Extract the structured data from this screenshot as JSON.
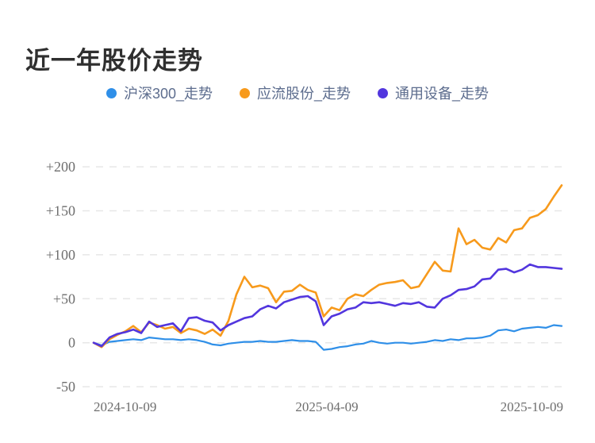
{
  "title": "近一年股价走势",
  "legend": [
    {
      "label": "沪深300_走势",
      "color": "#2f8fe8"
    },
    {
      "label": "应流股份_走势",
      "color": "#f79a1c"
    },
    {
      "label": "通用设备_走势",
      "color": "#5236de"
    }
  ],
  "chart_data": {
    "type": "line",
    "title": "近一年股价走势",
    "x_tick_labels": [
      "2024-10-09",
      "2025-04-09",
      "2025-10-09"
    ],
    "x_range_days": 365,
    "y_ticks": [
      -50,
      0,
      50,
      100,
      150,
      200
    ],
    "y_tick_labels": [
      "-50",
      "0",
      "+50",
      "+100",
      "+150",
      "+200"
    ],
    "ylim": [
      -50,
      200
    ],
    "grid": "horizontal-dashed",
    "grid_color": "#e7e7e7",
    "legend_position": "top-center",
    "unit": "percent-change",
    "series": [
      {
        "name": "沪深300_走势",
        "color": "#2f8fe8",
        "values": [
          0,
          -3,
          1,
          2,
          3,
          4,
          3,
          6,
          5,
          4,
          4,
          3,
          4,
          3,
          1,
          -2,
          -3,
          -1,
          0,
          1,
          1,
          2,
          1,
          1,
          2,
          3,
          2,
          2,
          1,
          -8,
          -7,
          -5,
          -4,
          -2,
          -1,
          2,
          0,
          -1,
          0,
          0,
          -1,
          0,
          1,
          3,
          2,
          4,
          3,
          5,
          5,
          6,
          8,
          14,
          15,
          13,
          16,
          17,
          18,
          17,
          20,
          19
        ]
      },
      {
        "name": "应流股份_走势",
        "color": "#f79a1c",
        "values": [
          0,
          -5,
          4,
          9,
          13,
          19,
          12,
          23,
          20,
          16,
          18,
          11,
          16,
          14,
          10,
          15,
          8,
          25,
          55,
          75,
          63,
          65,
          62,
          46,
          58,
          59,
          66,
          60,
          57,
          30,
          40,
          37,
          50,
          55,
          53,
          60,
          66,
          68,
          69,
          71,
          62,
          64,
          78,
          92,
          82,
          81,
          130,
          112,
          117,
          108,
          106,
          119,
          114,
          128,
          130,
          142,
          145,
          152,
          166,
          179
        ]
      },
      {
        "name": "通用设备_走势",
        "color": "#5236de",
        "values": [
          0,
          -4,
          6,
          10,
          12,
          15,
          11,
          24,
          18,
          20,
          22,
          13,
          28,
          29,
          25,
          23,
          14,
          20,
          24,
          28,
          30,
          38,
          42,
          39,
          46,
          49,
          52,
          53,
          47,
          20,
          30,
          33,
          38,
          40,
          46,
          45,
          46,
          44,
          42,
          45,
          44,
          46,
          41,
          40,
          50,
          54,
          60,
          61,
          64,
          72,
          73,
          83,
          84,
          80,
          83,
          89,
          86,
          86,
          85,
          84
        ]
      }
    ]
  }
}
